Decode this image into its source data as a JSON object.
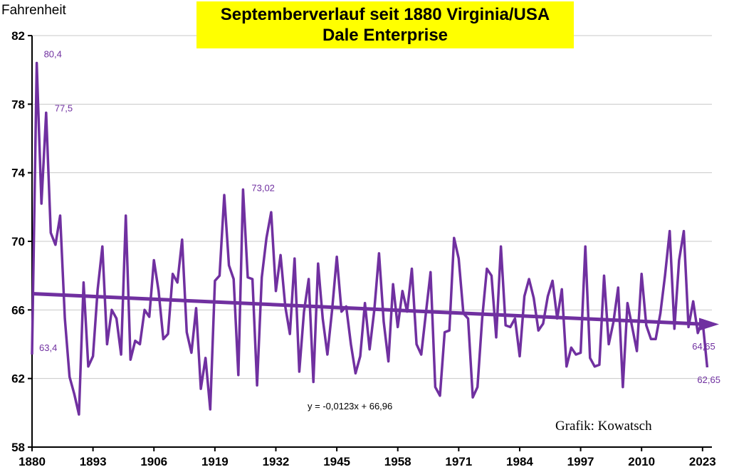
{
  "chart_data": {
    "type": "line",
    "title": "Septemberverlauf  seit 1880 Virginia/USA",
    "subtitle": "Dale Enterprise",
    "ylabel": "Fahrenheit",
    "credit": "Grafik: Kowatsch",
    "trend_equation": "y = -0,0123x + 66,96",
    "ylim": [
      58,
      82
    ],
    "yticks": [
      "58",
      "62",
      "66",
      "70",
      "74",
      "78",
      "82"
    ],
    "xlim": [
      1880,
      2025
    ],
    "xticks": [
      "1880",
      "1893",
      "1906",
      "1919",
      "1932",
      "1945",
      "1958",
      "1971",
      "1984",
      "1997",
      "2010",
      "2023"
    ],
    "grid": true,
    "colors": {
      "line": "#7030a0",
      "trend": "#7030a0",
      "title_bg": "#ffff00"
    },
    "series": [
      {
        "x": [
          1880,
          1881,
          1882,
          1883,
          1884,
          1885,
          1886,
          1887,
          1888,
          1889,
          1890,
          1891,
          1892,
          1893,
          1894,
          1895,
          1896,
          1897,
          1898,
          1899,
          1900,
          1901,
          1902,
          1903,
          1904,
          1905,
          1906,
          1907,
          1908,
          1909,
          1910,
          1911,
          1912,
          1913,
          1914,
          1915,
          1916,
          1917,
          1918,
          1919,
          1920,
          1921,
          1922,
          1923,
          1924,
          1925,
          1926,
          1927,
          1928,
          1929,
          1930,
          1931,
          1932,
          1933,
          1934,
          1935,
          1936,
          1937,
          1938,
          1939,
          1940,
          1941,
          1942,
          1943,
          1944,
          1945,
          1946,
          1947,
          1948,
          1949,
          1950,
          1951,
          1952,
          1953,
          1954,
          1955,
          1956,
          1957,
          1958,
          1959,
          1960,
          1961,
          1962,
          1963,
          1964,
          1965,
          1966,
          1967,
          1968,
          1969,
          1970,
          1971,
          1972,
          1973,
          1974,
          1975,
          1976,
          1977,
          1978,
          1979,
          1980,
          1981,
          1982,
          1983,
          1984,
          1985,
          1986,
          1987,
          1988,
          1989,
          1990,
          1991,
          1992,
          1993,
          1994,
          1995,
          1996,
          1997,
          1998,
          1999,
          2000,
          2001,
          2002,
          2003,
          2004,
          2005,
          2006,
          2007,
          2008,
          2009,
          2010,
          2011,
          2012,
          2013,
          2014,
          2015,
          2016,
          2017,
          2018,
          2019,
          2020,
          2021,
          2022,
          2023,
          2024
        ],
        "values": [
          63.4,
          80.4,
          72.2,
          77.5,
          70.5,
          69.8,
          71.5,
          65.5,
          62.1,
          61.1,
          59.9,
          67.6,
          62.7,
          63.3,
          67.2,
          69.7,
          64.0,
          66.0,
          65.5,
          63.4,
          71.5,
          63.1,
          64.2,
          64.0,
          66.0,
          65.6,
          68.9,
          67.1,
          64.3,
          64.6,
          68.1,
          67.6,
          70.1,
          64.7,
          63.5,
          66.1,
          61.4,
          63.2,
          60.2,
          67.7,
          68.0,
          72.7,
          68.6,
          67.8,
          62.2,
          73.02,
          67.9,
          67.8,
          61.6,
          67.9,
          70.2,
          71.7,
          67.1,
          69.2,
          66.2,
          64.6,
          69.0,
          62.4,
          65.9,
          67.8,
          61.8,
          68.7,
          65.5,
          63.4,
          66.0,
          69.1,
          65.9,
          66.2,
          64.0,
          62.3,
          63.3,
          66.4,
          63.7,
          66.0,
          69.3,
          65.3,
          63.0,
          67.5,
          65.0,
          67.1,
          65.9,
          68.4,
          64.0,
          63.4,
          65.8,
          68.2,
          61.5,
          61.0,
          64.7,
          64.8,
          70.2,
          69.0,
          65.8,
          65.5,
          60.9,
          61.5,
          65.5,
          68.4,
          68.0,
          64.4,
          69.7,
          65.1,
          65.0,
          65.5,
          63.3,
          66.8,
          67.8,
          66.7,
          64.8,
          65.2,
          66.8,
          67.7,
          65.5,
          67.2,
          62.7,
          63.8,
          63.4,
          63.5,
          69.7,
          63.2,
          62.7,
          62.8,
          68.0,
          64.0,
          65.3,
          67.3,
          61.5,
          66.4,
          65.0,
          63.6,
          68.1,
          65.1,
          64.3,
          64.3,
          65.8,
          68.0,
          70.6,
          64.9,
          68.9,
          70.6,
          65.0,
          66.5,
          64.65,
          65.4,
          62.65
        ]
      }
    ],
    "trend": {
      "slope": -0.0123,
      "intercept": 66.96,
      "x0": 1879
    },
    "annotations": [
      {
        "x": 1880,
        "y": 63.4,
        "label": "63,4"
      },
      {
        "x": 1881,
        "y": 80.4,
        "label": "80,4"
      },
      {
        "x": 1883,
        "y": 77.5,
        "label": "77,5"
      },
      {
        "x": 1925,
        "y": 73.02,
        "label": "73,02"
      },
      {
        "x": 2022,
        "y": 64.65,
        "label": "64,65"
      },
      {
        "x": 2024,
        "y": 62.65,
        "label": "62,65"
      }
    ]
  }
}
